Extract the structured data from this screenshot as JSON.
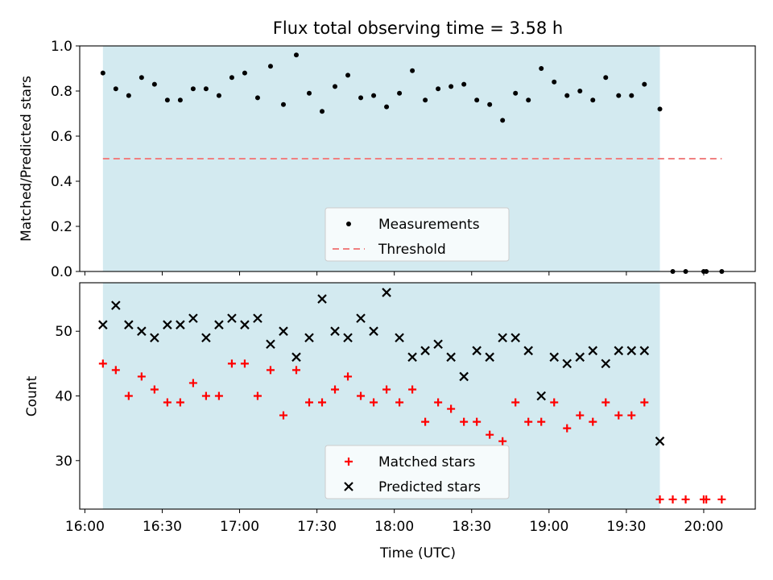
{
  "chart_data": [
    {
      "type": "scatter",
      "title": "Flux total observing time = 3.58 h",
      "xlabel": "",
      "ylabel": "Matched/Predicted stars",
      "xlim": [
        "15:58",
        "20:20"
      ],
      "ylim": [
        0,
        1.0
      ],
      "yticks": [
        "0.0",
        "0.2",
        "0.4",
        "0.6",
        "0.8",
        "1.0"
      ],
      "shaded_region": {
        "from": "16:07",
        "to": "19:43",
        "color": "#d3eaf0"
      },
      "threshold": {
        "name": "Threshold",
        "value": 0.5,
        "from": "16:07",
        "to": "20:07",
        "color": "#f08080",
        "style": "dashed"
      },
      "legend": {
        "position": "lower center",
        "entries": [
          "Measurements",
          "Threshold"
        ]
      },
      "series": [
        {
          "name": "Measurements",
          "color": "#000000",
          "marker": "dot",
          "x": [
            "16:07",
            "16:12",
            "16:17",
            "16:22",
            "16:27",
            "16:32",
            "16:37",
            "16:42",
            "16:47",
            "16:52",
            "16:57",
            "17:02",
            "17:07",
            "17:12",
            "17:17",
            "17:22",
            "17:27",
            "17:32",
            "17:37",
            "17:42",
            "17:47",
            "17:52",
            "17:57",
            "18:02",
            "18:07",
            "18:12",
            "18:17",
            "18:22",
            "18:27",
            "18:32",
            "18:37",
            "18:42",
            "18:47",
            "18:52",
            "18:57",
            "19:02",
            "19:07",
            "19:12",
            "19:17",
            "19:22",
            "19:27",
            "19:32",
            "19:37",
            "19:43",
            "19:48",
            "19:53",
            "20:00",
            "20:01",
            "20:07"
          ],
          "y": [
            0.88,
            0.81,
            0.78,
            0.86,
            0.83,
            0.76,
            0.76,
            0.81,
            0.81,
            0.78,
            0.86,
            0.88,
            0.77,
            0.91,
            0.74,
            0.96,
            0.79,
            0.71,
            0.82,
            0.87,
            0.77,
            0.78,
            0.73,
            0.79,
            0.89,
            0.76,
            0.81,
            0.82,
            0.83,
            0.76,
            0.74,
            0.67,
            0.79,
            0.76,
            0.9,
            0.84,
            0.78,
            0.8,
            0.76,
            0.86,
            0.78,
            0.78,
            0.83,
            0.72,
            0,
            0,
            0,
            0,
            0
          ]
        }
      ]
    },
    {
      "type": "scatter",
      "title": "",
      "xlabel": "Time (UTC)",
      "ylabel": "Count",
      "xlim": [
        "15:58",
        "20:20"
      ],
      "ylim": [
        22.5,
        57.5
      ],
      "yticks": [
        "30",
        "40",
        "50"
      ],
      "xticks": [
        "16:00",
        "16:30",
        "17:00",
        "17:30",
        "18:00",
        "18:30",
        "19:00",
        "19:30",
        "20:00"
      ],
      "shaded_region": {
        "from": "16:07",
        "to": "19:43",
        "color": "#d3eaf0"
      },
      "legend": {
        "position": "lower center",
        "entries": [
          "Matched stars",
          "Predicted stars"
        ]
      },
      "series": [
        {
          "name": "Matched stars",
          "color": "#ff0000",
          "marker": "plus",
          "x": [
            "16:07",
            "16:12",
            "16:17",
            "16:22",
            "16:27",
            "16:32",
            "16:37",
            "16:42",
            "16:47",
            "16:52",
            "16:57",
            "17:02",
            "17:07",
            "17:12",
            "17:17",
            "17:22",
            "17:27",
            "17:32",
            "17:37",
            "17:42",
            "17:47",
            "17:52",
            "17:57",
            "18:02",
            "18:07",
            "18:12",
            "18:17",
            "18:22",
            "18:27",
            "18:32",
            "18:37",
            "18:42",
            "18:47",
            "18:52",
            "18:57",
            "19:02",
            "19:07",
            "19:12",
            "19:17",
            "19:22",
            "19:27",
            "19:32",
            "19:37",
            "19:43",
            "19:48",
            "19:53",
            "20:00",
            "20:01",
            "20:07"
          ],
          "y": [
            45,
            44,
            40,
            43,
            41,
            39,
            39,
            42,
            40,
            40,
            45,
            45,
            40,
            44,
            37,
            44,
            39,
            39,
            41,
            43,
            40,
            39,
            41,
            39,
            41,
            36,
            39,
            38,
            36,
            36,
            34,
            33,
            39,
            36,
            36,
            39,
            35,
            37,
            36,
            39,
            37,
            37,
            39,
            24,
            24,
            24,
            24,
            24,
            24
          ]
        },
        {
          "name": "Predicted stars",
          "color": "#000000",
          "marker": "x",
          "x": [
            "16:07",
            "16:12",
            "16:17",
            "16:22",
            "16:27",
            "16:32",
            "16:37",
            "16:42",
            "16:47",
            "16:52",
            "16:57",
            "17:02",
            "17:07",
            "17:12",
            "17:17",
            "17:22",
            "17:27",
            "17:32",
            "17:37",
            "17:42",
            "17:47",
            "17:52",
            "17:57",
            "18:02",
            "18:07",
            "18:12",
            "18:17",
            "18:22",
            "18:27",
            "18:32",
            "18:37",
            "18:42",
            "18:47",
            "18:52",
            "18:57",
            "19:02",
            "19:07",
            "19:12",
            "19:17",
            "19:22",
            "19:27",
            "19:32",
            "19:37",
            "19:43"
          ],
          "y": [
            51,
            54,
            51,
            50,
            49,
            51,
            51,
            52,
            49,
            51,
            52,
            51,
            52,
            48,
            50,
            46,
            49,
            55,
            50,
            49,
            52,
            50,
            56,
            49,
            46,
            47,
            48,
            46,
            43,
            47,
            46,
            49,
            49,
            47,
            40,
            46,
            45,
            46,
            47,
            45,
            47,
            47,
            47,
            33
          ]
        }
      ]
    }
  ]
}
